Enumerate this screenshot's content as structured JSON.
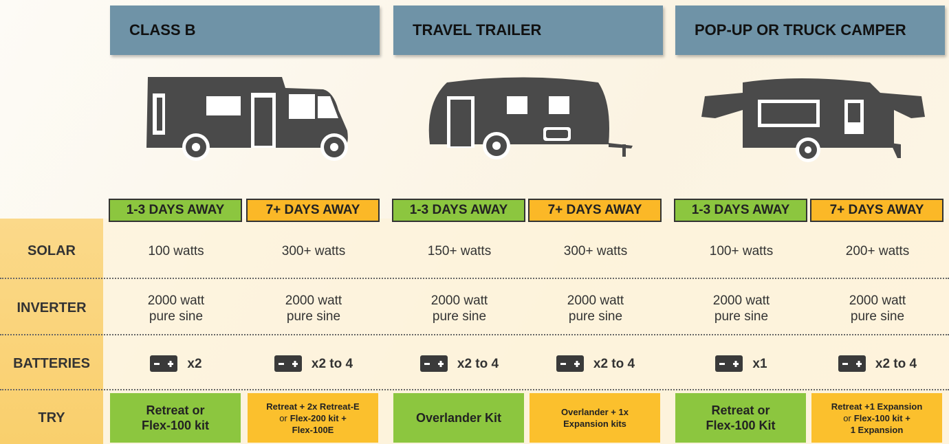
{
  "groups": [
    {
      "title": "CLASS B"
    },
    {
      "title": "TRAVEL TRAILER"
    },
    {
      "title": "POP-UP OR TRUCK CAMPER"
    }
  ],
  "day_labels": [
    "1-3 DAYS AWAY",
    "7+ DAYS AWAY",
    "1-3 DAYS AWAY",
    "7+ DAYS AWAY",
    "1-3 DAYS AWAY",
    "7+ DAYS AWAY"
  ],
  "rows": [
    {
      "label": "SOLAR",
      "cells": [
        [
          "100 watts"
        ],
        [
          "300+ watts"
        ],
        [
          "150+ watts"
        ],
        [
          "300+ watts"
        ],
        [
          "100+ watts"
        ],
        [
          "200+ watts"
        ]
      ]
    },
    {
      "label": "INVERTER",
      "cells": [
        [
          "2000 watt",
          "pure sine"
        ],
        [
          "2000 watt",
          "pure sine"
        ],
        [
          "2000 watt",
          "pure sine"
        ],
        [
          "2000 watt",
          "pure sine"
        ],
        [
          "2000 watt",
          "pure sine"
        ],
        [
          "2000 watt",
          "pure sine"
        ]
      ]
    },
    {
      "label": "BATTERIES",
      "cells": [
        [
          "x2"
        ],
        [
          "x2 to 4"
        ],
        [
          "x2 to 4"
        ],
        [
          "x2 to 4"
        ],
        [
          "x1"
        ],
        [
          "x2 to 4"
        ]
      ]
    }
  ],
  "try": {
    "label": "TRY",
    "cells": [
      [
        [
          {
            "text": "Retreat or",
            "bold": true
          }
        ],
        [
          {
            "text": "Flex-100 kit",
            "bold": true
          }
        ]
      ],
      [
        [
          {
            "text": "Retreat + 2x Retreat-E",
            "bold": true
          }
        ],
        [
          {
            "text": "or",
            "bold": false
          },
          {
            "text": "Flex-200 kit +",
            "bold": true
          }
        ],
        [
          {
            "text": "Flex-100E",
            "bold": true
          }
        ]
      ],
      [
        [
          {
            "text": "Overlander Kit",
            "bold": true
          }
        ]
      ],
      [
        [
          {
            "text": "Overlander + 1x",
            "bold": true
          }
        ],
        [
          {
            "text": "Expansion kits",
            "bold": true
          }
        ]
      ],
      [
        [
          {
            "text": "Retreat or",
            "bold": true
          }
        ],
        [
          {
            "text": "Flex-100 Kit",
            "bold": true
          }
        ]
      ],
      [
        [
          {
            "text": "Retreat +1 Expansion",
            "bold": true
          }
        ],
        [
          {
            "text": "or",
            "bold": false
          },
          {
            "text": "Flex-100 kit +",
            "bold": true
          }
        ],
        [
          {
            "text": "1 Expansion",
            "bold": true
          }
        ]
      ]
    ]
  }
}
